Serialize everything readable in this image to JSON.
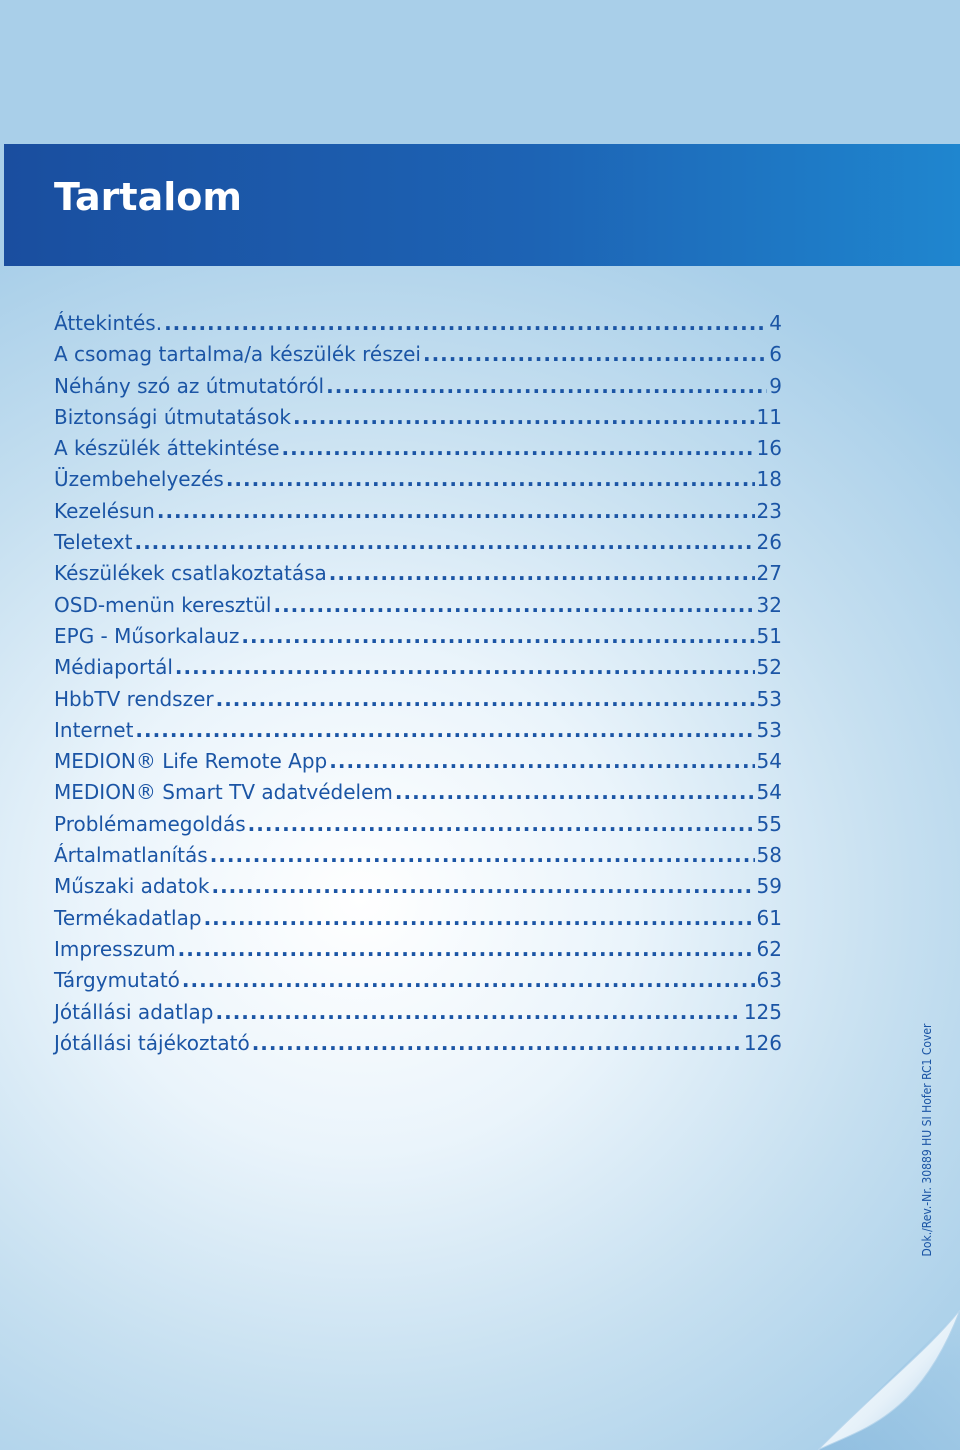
{
  "header": {
    "title": "Tartalom"
  },
  "toc": [
    {
      "title": "Áttekintés.",
      "page": "4"
    },
    {
      "title": "A csomag tartalma/a készülék részei",
      "page": "6"
    },
    {
      "title": "Néhány szó az útmutatóról",
      "page": "9"
    },
    {
      "title": "Biztonsági útmutatások",
      "page": "11"
    },
    {
      "title": "A készülék áttekintése",
      "page": "16"
    },
    {
      "title": "Üzembehelyezés",
      "page": "18"
    },
    {
      "title": "Kezelésun",
      "page": "23"
    },
    {
      "title": "Teletext",
      "page": "26"
    },
    {
      "title": "Készülékek csatlakoztatása",
      "page": "27"
    },
    {
      "title": "OSD-menün keresztül",
      "page": "32"
    },
    {
      "title": "EPG - Műsorkalauz",
      "page": "51"
    },
    {
      "title": "Médiaportál",
      "page": "52"
    },
    {
      "title": "HbbTV rendszer",
      "page": "53"
    },
    {
      "title": "Internet",
      "page": "53"
    },
    {
      "title": "MEDION® Life Remote App",
      "page": "54"
    },
    {
      "title": "MEDION® Smart TV adatvédelem",
      "page": "54"
    },
    {
      "title": "Problémamegoldás",
      "page": "55"
    },
    {
      "title": "Ártalmatlanítás",
      "page": "58"
    },
    {
      "title": "Műszaki adatok",
      "page": "59"
    },
    {
      "title": "Termékadatlap",
      "page": "61"
    },
    {
      "title": "Impresszum",
      "page": "62"
    },
    {
      "title": "Tárgymutató",
      "page": "63"
    },
    {
      "title": "Jótállási adatlap",
      "page": "125"
    },
    {
      "title": "Jótállási tájékoztató",
      "page": "126"
    }
  ],
  "sidebar": {
    "doc_code": "Dok./Rev.-Nr. 30889 HU SI Hofer RC1 Cover"
  },
  "colors": {
    "header_band": "#1a4e9f",
    "text": "#1b55a5",
    "title_text": "#ffffff"
  }
}
